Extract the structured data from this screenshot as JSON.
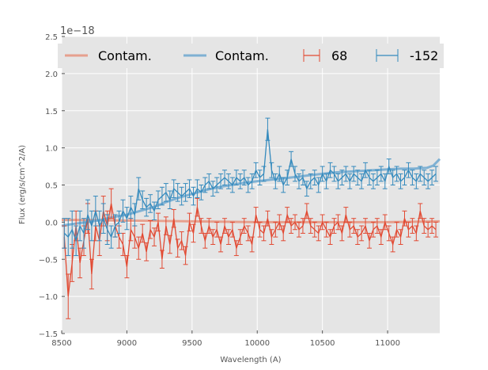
{
  "chart_data": {
    "type": "line",
    "title": "",
    "xlabel": "Wavelength (A)",
    "ylabel": "Flux (erg/s/cm^2/A)",
    "y_offset_label": "1e−18",
    "xlim": [
      8500,
      11400
    ],
    "ylim": [
      -1.5,
      2.5
    ],
    "xticks": [
      8500,
      9000,
      9500,
      10000,
      10500,
      11000
    ],
    "xtick_labels": [
      "8500",
      "9000",
      "9500",
      "10000",
      "10500",
      "11000"
    ],
    "yticks": [
      -1.5,
      -1.0,
      -0.5,
      0.0,
      0.5,
      1.0,
      1.5,
      2.0,
      2.5
    ],
    "ytick_labels": [
      "−1.5",
      "−1.0",
      "−0.5",
      "0.0",
      "0.5",
      "1.0",
      "1.5",
      "2.0",
      "2.5"
    ],
    "grid": true,
    "background": "#e5e5e5",
    "legend_position": "top",
    "legend": [
      {
        "label": "Contam.",
        "kind": "line",
        "color": "#e6a08e"
      },
      {
        "label": "Contam.",
        "kind": "line",
        "color": "#7fb1d3"
      },
      {
        "label": "68",
        "kind": "errorbar",
        "color": "#e24a33"
      },
      {
        "label": "-152",
        "kind": "errorbar",
        "color": "#348abd"
      }
    ],
    "contam_series": [
      {
        "color": "#e6a08e",
        "x": [
          8500,
          8600,
          9000,
          9500,
          10000,
          10500,
          11000,
          11400
        ],
        "y": [
          0.03,
          0.03,
          0.02,
          0.01,
          0.0,
          0.0,
          0.0,
          0.01
        ]
      },
      {
        "color": "#7fb1d3",
        "x": [
          8500,
          8600,
          8700,
          8800,
          8900,
          9000,
          9100,
          9200,
          9300,
          9400,
          9500,
          9600,
          9700,
          9800,
          9900,
          10000,
          10100,
          10200,
          10300,
          10400,
          10500,
          10600,
          10700,
          10800,
          10900,
          11000,
          11100,
          11200,
          11300,
          11350,
          11400
        ],
        "y": [
          -0.05,
          -0.02,
          0.0,
          0.03,
          0.07,
          0.1,
          0.15,
          0.2,
          0.27,
          0.33,
          0.38,
          0.43,
          0.47,
          0.5,
          0.53,
          0.55,
          0.57,
          0.59,
          0.61,
          0.63,
          0.65,
          0.67,
          0.68,
          0.69,
          0.7,
          0.71,
          0.72,
          0.72,
          0.73,
          0.76,
          0.85
        ]
      }
    ],
    "error_series": [
      {
        "name": "68",
        "color": "#e24a33",
        "x": [
          8520,
          8550,
          8580,
          8610,
          8640,
          8670,
          8700,
          8730,
          8760,
          8790,
          8820,
          8850,
          8880,
          8910,
          8940,
          8970,
          9000,
          9030,
          9060,
          9090,
          9120,
          9150,
          9180,
          9210,
          9240,
          9270,
          9300,
          9330,
          9360,
          9390,
          9420,
          9450,
          9480,
          9510,
          9540,
          9570,
          9600,
          9630,
          9660,
          9690,
          9720,
          9750,
          9780,
          9810,
          9840,
          9870,
          9900,
          9930,
          9960,
          9990,
          10020,
          10050,
          10080,
          10110,
          10140,
          10170,
          10200,
          10230,
          10260,
          10290,
          10320,
          10350,
          10380,
          10410,
          10440,
          10470,
          10500,
          10530,
          10560,
          10590,
          10620,
          10650,
          10680,
          10710,
          10740,
          10770,
          10800,
          10830,
          10860,
          10890,
          10920,
          10950,
          10980,
          11010,
          11040,
          11070,
          11100,
          11130,
          11160,
          11190,
          11220,
          11250,
          11280,
          11310,
          11340,
          11370
        ],
        "y": [
          -0.2,
          -1.0,
          -0.55,
          -0.05,
          -0.55,
          -0.25,
          0.05,
          -0.7,
          -0.05,
          -0.25,
          0.15,
          -0.05,
          0.25,
          -0.05,
          -0.2,
          -0.3,
          -0.6,
          -0.1,
          -0.2,
          -0.35,
          -0.15,
          -0.4,
          -0.1,
          -0.2,
          0.0,
          -0.5,
          -0.05,
          -0.3,
          0.05,
          -0.35,
          -0.25,
          -0.45,
          0.0,
          -0.15,
          0.2,
          -0.05,
          -0.25,
          -0.05,
          -0.2,
          -0.1,
          -0.3,
          -0.05,
          -0.2,
          -0.1,
          -0.35,
          -0.2,
          -0.05,
          -0.15,
          -0.3,
          0.1,
          -0.1,
          -0.15,
          0.05,
          -0.2,
          -0.1,
          0.0,
          -0.15,
          0.1,
          -0.05,
          0.0,
          -0.1,
          -0.05,
          0.15,
          -0.05,
          -0.1,
          -0.15,
          0.0,
          -0.1,
          -0.2,
          -0.05,
          0.0,
          -0.15,
          0.1,
          -0.1,
          -0.05,
          -0.2,
          -0.15,
          -0.05,
          -0.25,
          -0.1,
          -0.05,
          -0.2,
          0.0,
          -0.15,
          -0.3,
          -0.1,
          -0.2,
          0.05,
          -0.1,
          -0.05,
          -0.15,
          0.15,
          -0.05,
          -0.1,
          -0.05,
          -0.1
        ],
        "err": [
          0.15,
          0.3,
          0.25,
          0.2,
          0.2,
          0.2,
          0.2,
          0.2,
          0.2,
          0.2,
          0.2,
          0.2,
          0.2,
          0.15,
          0.15,
          0.15,
          0.15,
          0.15,
          0.15,
          0.15,
          0.12,
          0.12,
          0.12,
          0.12,
          0.12,
          0.12,
          0.12,
          0.12,
          0.12,
          0.12,
          0.12,
          0.12,
          0.12,
          0.12,
          0.12,
          0.1,
          0.1,
          0.1,
          0.1,
          0.1,
          0.1,
          0.1,
          0.1,
          0.1,
          0.1,
          0.1,
          0.1,
          0.1,
          0.1,
          0.1,
          0.1,
          0.1,
          0.1,
          0.1,
          0.1,
          0.1,
          0.1,
          0.1,
          0.1,
          0.1,
          0.1,
          0.1,
          0.1,
          0.1,
          0.1,
          0.1,
          0.1,
          0.1,
          0.1,
          0.1,
          0.1,
          0.1,
          0.1,
          0.1,
          0.1,
          0.1,
          0.1,
          0.1,
          0.1,
          0.1,
          0.1,
          0.1,
          0.1,
          0.1,
          0.1,
          0.1,
          0.1,
          0.1,
          0.1,
          0.1,
          0.1,
          0.1,
          0.1,
          0.1,
          0.1,
          0.1
        ]
      },
      {
        "name": "-152",
        "color": "#348abd",
        "x": [
          8520,
          8550,
          8580,
          8610,
          8640,
          8670,
          8700,
          8730,
          8760,
          8790,
          8820,
          8850,
          8880,
          8910,
          8940,
          8970,
          9000,
          9030,
          9060,
          9090,
          9120,
          9150,
          9180,
          9210,
          9240,
          9270,
          9300,
          9330,
          9360,
          9390,
          9420,
          9450,
          9480,
          9510,
          9540,
          9570,
          9600,
          9630,
          9660,
          9690,
          9720,
          9750,
          9780,
          9810,
          9840,
          9870,
          9900,
          9930,
          9960,
          9990,
          10020,
          10050,
          10080,
          10110,
          10140,
          10170,
          10200,
          10230,
          10260,
          10290,
          10320,
          10350,
          10380,
          10410,
          10440,
          10470,
          10500,
          10530,
          10560,
          10590,
          10620,
          10650,
          10680,
          10710,
          10740,
          10770,
          10800,
          10830,
          10860,
          10890,
          10920,
          10950,
          10980,
          11010,
          11040,
          11070,
          11100,
          11130,
          11160,
          11190,
          11220,
          11250,
          11280,
          11310,
          11340,
          11370
        ],
        "y": [
          -0.15,
          -0.2,
          -0.1,
          -0.25,
          -0.05,
          -0.15,
          0.1,
          -0.05,
          0.15,
          -0.05,
          0.05,
          -0.1,
          -0.2,
          -0.05,
          0.0,
          0.15,
          0.05,
          0.2,
          0.1,
          0.45,
          0.3,
          0.2,
          0.25,
          0.15,
          0.3,
          0.35,
          0.4,
          0.3,
          0.45,
          0.4,
          0.35,
          0.4,
          0.45,
          0.35,
          0.45,
          0.4,
          0.5,
          0.55,
          0.45,
          0.5,
          0.55,
          0.6,
          0.55,
          0.5,
          0.6,
          0.55,
          0.6,
          0.5,
          0.55,
          0.7,
          0.6,
          0.65,
          1.25,
          0.7,
          0.55,
          0.65,
          0.5,
          0.6,
          0.85,
          0.65,
          0.55,
          0.6,
          0.45,
          0.55,
          0.6,
          0.5,
          0.65,
          0.55,
          0.7,
          0.65,
          0.55,
          0.6,
          0.65,
          0.55,
          0.65,
          0.6,
          0.55,
          0.7,
          0.6,
          0.55,
          0.6,
          0.65,
          0.55,
          0.75,
          0.6,
          0.65,
          0.55,
          0.6,
          0.7,
          0.6,
          0.55,
          0.65,
          0.6,
          0.55,
          0.6,
          0.65
        ],
        "err": [
          0.2,
          0.25,
          0.25,
          0.2,
          0.2,
          0.2,
          0.2,
          0.2,
          0.2,
          0.2,
          0.2,
          0.2,
          0.15,
          0.15,
          0.15,
          0.15,
          0.15,
          0.15,
          0.15,
          0.15,
          0.12,
          0.12,
          0.12,
          0.12,
          0.12,
          0.12,
          0.12,
          0.12,
          0.12,
          0.12,
          0.12,
          0.12,
          0.12,
          0.12,
          0.12,
          0.1,
          0.1,
          0.1,
          0.1,
          0.1,
          0.1,
          0.1,
          0.1,
          0.1,
          0.1,
          0.1,
          0.1,
          0.1,
          0.1,
          0.1,
          0.1,
          0.1,
          0.15,
          0.1,
          0.1,
          0.1,
          0.1,
          0.1,
          0.1,
          0.1,
          0.1,
          0.1,
          0.1,
          0.1,
          0.1,
          0.1,
          0.1,
          0.1,
          0.1,
          0.1,
          0.1,
          0.1,
          0.1,
          0.1,
          0.1,
          0.1,
          0.1,
          0.1,
          0.1,
          0.1,
          0.1,
          0.1,
          0.1,
          0.1,
          0.1,
          0.1,
          0.1,
          0.1,
          0.1,
          0.1,
          0.1,
          0.1,
          0.1,
          0.1,
          0.1,
          0.1
        ]
      }
    ]
  }
}
